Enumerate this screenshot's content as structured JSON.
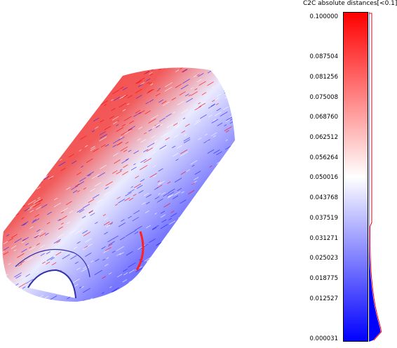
{
  "scalar_field": {
    "title": "C2C absolute distances[<0.1]",
    "ticks": [
      "0.100000",
      "0.087504",
      "0.081256",
      "0.075008",
      "0.068760",
      "0.062512",
      "0.056264",
      "0.050016",
      "0.043768",
      "0.037519",
      "0.031271",
      "0.025023",
      "0.018775",
      "0.012527",
      "0.000031"
    ],
    "tick_values": [
      0.1,
      0.087504,
      0.081256,
      0.075008,
      0.06876,
      0.062512,
      0.056264,
      0.050016,
      0.043768,
      0.037519,
      0.031271,
      0.025023,
      0.018775,
      0.012527,
      3.1e-05
    ],
    "range": [
      3.1e-05,
      0.1
    ],
    "colors": {
      "high": "#ff0000",
      "mid": "#ffffff",
      "low": "#0000ff",
      "histogram": "#0000ff",
      "histogram_outline": "#ff0000"
    }
  }
}
